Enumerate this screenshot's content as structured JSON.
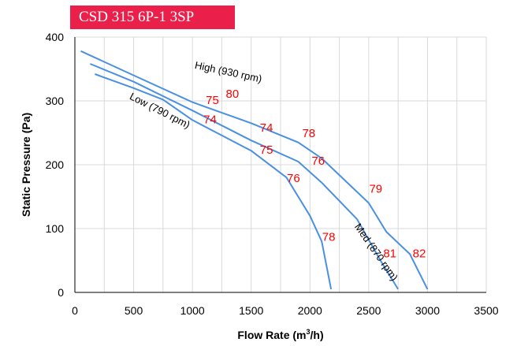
{
  "chart_data": {
    "type": "line",
    "title": "CSD 315 6P-1 3SP",
    "xlabel": "Flow Rate (m",
    "xlabel_sup": "3",
    "xlabel_end": "/h)",
    "ylabel": "Static Pressure (Pa)",
    "xlim": [
      0,
      3500
    ],
    "ylim": [
      0,
      400
    ],
    "xticks": [
      0,
      500,
      1000,
      1500,
      2000,
      2500,
      3000,
      3500
    ],
    "yticks": [
      0,
      100,
      200,
      300,
      400
    ],
    "x_gridlines": [
      250,
      500,
      750,
      1000,
      1250,
      1500,
      1750,
      2000,
      2250,
      2500,
      2750,
      3000,
      3250,
      3500
    ],
    "y_gridlines": [
      100,
      200,
      300,
      400
    ],
    "grid": true,
    "colors": {
      "title_bg": "#ea1f4a",
      "curve": "#4a90e2",
      "annotation": "#ff0000",
      "grid": "#d9d9d9"
    },
    "series": [
      {
        "name": "High (930 rpm)",
        "label_at": [
          1300,
          340
        ],
        "label_angle": 12,
        "x": [
          50,
          500,
          1000,
          1500,
          1900,
          2100,
          2500,
          2650,
          2850,
          3000
        ],
        "y": [
          378,
          340,
          298,
          265,
          235,
          210,
          140,
          95,
          60,
          5
        ]
      },
      {
        "name": "Med (870 rpm)",
        "label_at": [
          2540,
          60
        ],
        "label_angle": 55,
        "x": [
          130,
          500,
          1000,
          1500,
          1900,
          2100,
          2400,
          2600,
          2750
        ],
        "y": [
          358,
          330,
          285,
          238,
          205,
          172,
          115,
          50,
          5
        ]
      },
      {
        "name": "Low (790 rpm)",
        "label_at": [
          710,
          280
        ],
        "label_angle": 27,
        "x": [
          170,
          500,
          750,
          1000,
          1500,
          1800,
          2000,
          2100,
          2180
        ],
        "y": [
          342,
          320,
          302,
          270,
          222,
          180,
          120,
          80,
          5
        ]
      }
    ],
    "annotations": [
      {
        "text": "80",
        "x": 1340,
        "y": 305
      },
      {
        "text": "75",
        "x": 1170,
        "y": 295
      },
      {
        "text": "74",
        "x": 1150,
        "y": 265
      },
      {
        "text": "74",
        "x": 1630,
        "y": 252
      },
      {
        "text": "78",
        "x": 1990,
        "y": 243
      },
      {
        "text": "75",
        "x": 1630,
        "y": 217
      },
      {
        "text": "76",
        "x": 2070,
        "y": 200
      },
      {
        "text": "76",
        "x": 1860,
        "y": 173
      },
      {
        "text": "79",
        "x": 2560,
        "y": 156
      },
      {
        "text": "78",
        "x": 2160,
        "y": 81
      },
      {
        "text": "81",
        "x": 2680,
        "y": 55
      },
      {
        "text": "82",
        "x": 2930,
        "y": 55
      }
    ]
  }
}
